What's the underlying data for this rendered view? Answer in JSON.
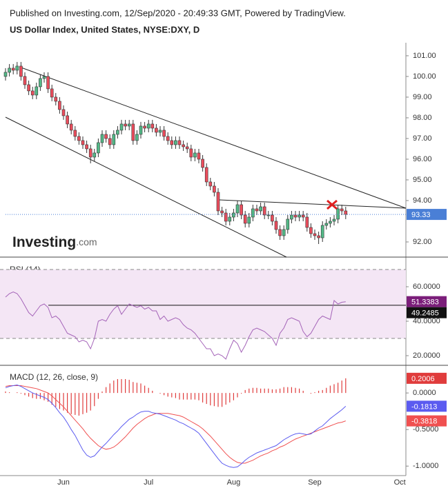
{
  "header": {
    "published": "Published on Investing.com, 12/Sep/2020 - 20:49:33 GMT, Powered by TradingView.",
    "logo": "Investing",
    "logo_suffix": ".com"
  },
  "chart_data": [
    {
      "type": "candlestick",
      "title": "US Dollar Index, United States, NYSE:DXY, D",
      "categories": [
        null,
        null,
        null,
        null,
        null,
        null,
        null,
        null,
        null,
        null,
        null,
        null,
        null,
        null,
        null,
        "Jun",
        null,
        null,
        null,
        null,
        null,
        null,
        null,
        null,
        null,
        null,
        null,
        null,
        null,
        null,
        null,
        null,
        null,
        null,
        null,
        null,
        null,
        "Jul",
        null,
        null,
        null,
        null,
        null,
        null,
        null,
        null,
        null,
        null,
        null,
        null,
        null,
        null,
        null,
        null,
        null,
        null,
        null,
        null,
        null,
        "Aug",
        null,
        null,
        null,
        null,
        null,
        null,
        null,
        null,
        null,
        null,
        null,
        null,
        null,
        null,
        null,
        null,
        null,
        null,
        null,
        null,
        "Sep",
        null,
        null,
        null,
        null,
        null,
        null,
        null,
        null,
        null,
        null,
        null,
        null,
        null,
        null,
        null,
        null,
        null,
        null,
        null,
        null,
        null,
        "Oct"
      ],
      "open": [
        100.0,
        100.2,
        100.4,
        100.3,
        100.5,
        100.0,
        99.6,
        99.3,
        99.1,
        99.5,
        99.9,
        100.0,
        99.4,
        99.0,
        98.8,
        98.4,
        98.1,
        97.7,
        97.4,
        97.1,
        96.9,
        96.7,
        96.5,
        96.1,
        96.3,
        96.8,
        97.2,
        97.0,
        96.7,
        97.2,
        97.4,
        97.7,
        97.6,
        97.7,
        96.9,
        97.2,
        97.6,
        97.5,
        97.7,
        97.5,
        97.3,
        97.4,
        97.1,
        96.9,
        96.7,
        96.9,
        96.7,
        96.6,
        96.5,
        96.1,
        96.3,
        96.0,
        95.6,
        94.9,
        94.7,
        94.4,
        93.5,
        93.4,
        93.0,
        93.2,
        93.4,
        93.8,
        93.3,
        92.9,
        93.2,
        93.6,
        93.5,
        93.7,
        93.3,
        93.3,
        93.0,
        92.6,
        92.3,
        92.6,
        93.1,
        93.3,
        93.2,
        93.3,
        93.2,
        92.7,
        92.4,
        92.3,
        92.2,
        92.8,
        92.9,
        93.0,
        93.1,
        93.6,
        93.5,
        null,
        null,
        null,
        null,
        null,
        null,
        null,
        null,
        null,
        null,
        null,
        null,
        null,
        null
      ],
      "high": [
        100.4,
        100.6,
        100.6,
        100.7,
        100.7,
        100.2,
        99.8,
        99.5,
        99.7,
        100.1,
        100.2,
        100.2,
        99.6,
        99.2,
        99.0,
        98.6,
        98.3,
        97.9,
        97.6,
        97.3,
        97.1,
        96.9,
        96.7,
        96.5,
        97.0,
        97.4,
        97.4,
        97.2,
        97.4,
        97.6,
        97.9,
        97.9,
        97.9,
        97.9,
        97.4,
        97.8,
        97.8,
        97.9,
        97.9,
        97.7,
        97.6,
        97.6,
        97.3,
        97.1,
        97.1,
        97.1,
        96.9,
        96.8,
        96.7,
        96.5,
        96.5,
        96.2,
        95.8,
        95.1,
        94.9,
        94.6,
        93.7,
        93.6,
        93.4,
        93.6,
        94.0,
        94.0,
        93.5,
        93.4,
        93.8,
        93.8,
        93.9,
        93.9,
        93.5,
        93.5,
        93.2,
        92.8,
        92.8,
        93.3,
        93.5,
        93.5,
        93.5,
        93.5,
        93.4,
        92.9,
        92.6,
        92.5,
        93.0,
        93.1,
        93.2,
        93.3,
        93.8,
        93.8,
        93.7,
        null,
        null,
        null,
        null,
        null,
        null,
        null,
        null,
        null,
        null,
        null,
        null,
        null,
        null
      ],
      "low": [
        99.8,
        100.0,
        100.1,
        100.1,
        99.8,
        99.4,
        99.1,
        98.9,
        98.9,
        99.3,
        99.7,
        99.2,
        98.8,
        98.6,
        98.2,
        97.9,
        97.5,
        97.2,
        96.9,
        96.7,
        96.5,
        96.3,
        95.8,
        95.9,
        96.1,
        96.6,
        96.8,
        96.5,
        96.5,
        97.0,
        97.2,
        97.4,
        97.4,
        96.7,
        96.7,
        97.0,
        97.3,
        97.3,
        97.3,
        97.1,
        97.1,
        96.9,
        96.7,
        96.5,
        96.5,
        96.5,
        96.4,
        96.3,
        95.9,
        95.9,
        95.8,
        95.4,
        94.7,
        94.5,
        94.2,
        93.3,
        93.2,
        92.8,
        92.8,
        93.0,
        93.2,
        93.1,
        92.7,
        92.7,
        93.0,
        93.3,
        93.3,
        93.1,
        93.1,
        92.8,
        92.4,
        92.1,
        92.1,
        92.4,
        92.9,
        93.0,
        93.0,
        93.0,
        92.5,
        92.2,
        92.1,
        91.9,
        92.0,
        92.6,
        92.7,
        92.8,
        92.9,
        93.3,
        93.1,
        null,
        null,
        null,
        null,
        null,
        null,
        null,
        null,
        null,
        null,
        null,
        null,
        null,
        null
      ],
      "close": [
        100.2,
        100.4,
        100.3,
        100.5,
        100.0,
        99.6,
        99.3,
        99.1,
        99.5,
        99.9,
        100.0,
        99.4,
        99.0,
        98.8,
        98.4,
        98.1,
        97.7,
        97.4,
        97.1,
        96.9,
        96.7,
        96.5,
        96.1,
        96.3,
        96.8,
        97.2,
        97.0,
        96.7,
        97.2,
        97.4,
        97.7,
        97.6,
        97.7,
        96.9,
        97.2,
        97.6,
        97.5,
        97.7,
        97.5,
        97.3,
        97.4,
        97.1,
        96.9,
        96.7,
        96.9,
        96.7,
        96.6,
        96.5,
        96.1,
        96.3,
        96.0,
        95.6,
        94.9,
        94.7,
        94.4,
        93.5,
        93.4,
        93.0,
        93.2,
        93.4,
        93.8,
        93.3,
        92.9,
        93.2,
        93.6,
        93.5,
        93.7,
        93.3,
        93.3,
        93.0,
        92.6,
        92.3,
        92.6,
        93.1,
        93.3,
        93.2,
        93.3,
        93.2,
        92.7,
        92.4,
        92.3,
        92.2,
        92.8,
        92.9,
        93.0,
        93.1,
        93.6,
        93.5,
        93.33,
        null,
        null,
        null,
        null,
        null,
        null,
        null,
        null,
        null,
        null,
        null,
        null,
        null,
        null
      ],
      "colors": {
        "up": "#53b987",
        "down": "#eb4d5c",
        "last": "#4a7fd6"
      },
      "ylim": [
        91.3,
        101.63
      ],
      "yticks": [
        {
          "value": 101,
          "label": "101.00"
        },
        {
          "value": 100,
          "label": "100.00"
        },
        {
          "value": 99,
          "label": "99.00"
        },
        {
          "value": 98,
          "label": "98.00"
        },
        {
          "value": 97,
          "label": "97.00"
        },
        {
          "value": 96,
          "label": "96.00"
        },
        {
          "value": 95,
          "label": "95.00"
        },
        {
          "value": 94,
          "label": "94.00"
        },
        {
          "value": 92,
          "label": "92.00"
        }
      ]
    },
    {
      "type": "line",
      "title": "RSI (14)",
      "color": "#a463b8",
      "values": [
        54,
        56,
        57,
        56,
        53,
        49,
        45,
        43,
        46,
        49,
        50,
        48,
        42,
        43,
        41,
        37,
        33,
        32,
        31,
        28,
        29,
        28,
        24,
        30,
        40,
        41,
        40,
        44,
        47,
        49,
        44,
        47,
        50,
        49,
        48,
        49,
        47,
        48,
        46,
        46,
        41,
        43,
        40,
        41,
        42,
        41,
        38,
        36,
        35,
        33,
        30,
        27,
        24,
        24,
        20,
        21,
        20,
        18,
        24,
        29,
        27,
        22,
        26,
        31,
        35,
        36,
        35,
        34,
        32,
        30,
        26,
        33,
        36,
        41,
        42,
        41,
        40,
        34,
        31,
        33,
        37,
        41,
        43,
        42,
        41,
        52,
        50,
        51,
        51.3383,
        null,
        null,
        null,
        null,
        null,
        null,
        null,
        null,
        null,
        null,
        null,
        null,
        null,
        null
      ],
      "label_color": "#7b1e7a",
      "hline": 49.2485,
      "band": [
        30,
        70
      ],
      "band_color": "#f4e6f5",
      "ylim": [
        15.2,
        75.2
      ],
      "yticks": [
        {
          "value": 60,
          "label": "60.0000"
        },
        {
          "value": 40,
          "label": "40.0000"
        },
        {
          "value": 20,
          "label": "20.0000"
        }
      ]
    },
    {
      "type": "macd",
      "title": "MACD (12, 26, close, 9)",
      "macd": {
        "color": "#5b5bf0",
        "values": [
          0.07,
          0.09,
          0.1,
          0.11,
          0.09,
          0.06,
          0.03,
          0.0,
          -0.02,
          -0.04,
          -0.06,
          -0.09,
          -0.14,
          -0.2,
          -0.27,
          -0.33,
          -0.41,
          -0.5,
          -0.58,
          -0.68,
          -0.78,
          -0.85,
          -0.88,
          -0.86,
          -0.8,
          -0.74,
          -0.69,
          -0.63,
          -0.57,
          -0.52,
          -0.46,
          -0.41,
          -0.36,
          -0.33,
          -0.29,
          -0.26,
          -0.25,
          -0.25,
          -0.27,
          -0.28,
          -0.29,
          -0.31,
          -0.33,
          -0.35,
          -0.37,
          -0.4,
          -0.42,
          -0.45,
          -0.48,
          -0.51,
          -0.55,
          -0.62,
          -0.69,
          -0.76,
          -0.83,
          -0.9,
          -0.96,
          -0.99,
          -1.01,
          -1.02,
          -1.01,
          -0.97,
          -0.92,
          -0.88,
          -0.85,
          -0.82,
          -0.8,
          -0.78,
          -0.76,
          -0.74,
          -0.72,
          -0.68,
          -0.64,
          -0.61,
          -0.58,
          -0.56,
          -0.55,
          -0.56,
          -0.57,
          -0.56,
          -0.52,
          -0.48,
          -0.45,
          -0.4,
          -0.35,
          -0.31,
          -0.27,
          -0.23,
          -0.1813,
          null,
          null,
          null,
          null,
          null,
          null,
          null,
          null,
          null,
          null,
          null,
          null,
          null,
          null
        ]
      },
      "signal": {
        "color": "#f05050",
        "values": [
          0.09,
          0.1,
          0.1,
          0.1,
          0.1,
          0.09,
          0.08,
          0.07,
          0.06,
          0.04,
          0.02,
          0.0,
          -0.04,
          -0.09,
          -0.14,
          -0.19,
          -0.25,
          -0.31,
          -0.37,
          -0.43,
          -0.49,
          -0.56,
          -0.62,
          -0.67,
          -0.72,
          -0.75,
          -0.77,
          -0.76,
          -0.74,
          -0.7,
          -0.65,
          -0.6,
          -0.54,
          -0.48,
          -0.43,
          -0.39,
          -0.35,
          -0.32,
          -0.3,
          -0.28,
          -0.28,
          -0.28,
          -0.28,
          -0.29,
          -0.3,
          -0.31,
          -0.33,
          -0.36,
          -0.39,
          -0.42,
          -0.45,
          -0.49,
          -0.54,
          -0.59,
          -0.65,
          -0.71,
          -0.77,
          -0.83,
          -0.88,
          -0.92,
          -0.95,
          -0.96,
          -0.96,
          -0.94,
          -0.92,
          -0.89,
          -0.86,
          -0.84,
          -0.82,
          -0.79,
          -0.77,
          -0.74,
          -0.72,
          -0.69,
          -0.66,
          -0.63,
          -0.61,
          -0.59,
          -0.57,
          -0.55,
          -0.53,
          -0.51,
          -0.49,
          -0.47,
          -0.45,
          -0.43,
          -0.41,
          -0.4,
          -0.3818,
          null,
          null,
          null,
          null,
          null,
          null,
          null,
          null,
          null,
          null,
          null,
          null,
          null,
          null
        ]
      },
      "histogram": {
        "color": "#e03c3c",
        "values": [
          0.02,
          0.01,
          0.0,
          0.01,
          -0.01,
          -0.03,
          -0.05,
          -0.07,
          -0.08,
          -0.08,
          -0.1,
          -0.12,
          -0.16,
          -0.19,
          -0.22,
          -0.24,
          -0.27,
          -0.29,
          -0.3,
          -0.31,
          -0.29,
          -0.27,
          -0.24,
          -0.18,
          -0.08,
          0.02,
          0.08,
          0.13,
          0.17,
          0.19,
          0.19,
          0.19,
          0.18,
          0.15,
          0.14,
          0.13,
          0.1,
          0.07,
          0.03,
          0.0,
          -0.01,
          -0.03,
          -0.05,
          -0.06,
          -0.07,
          -0.09,
          -0.09,
          -0.09,
          -0.09,
          -0.09,
          -0.1,
          -0.13,
          -0.15,
          -0.17,
          -0.18,
          -0.19,
          -0.19,
          -0.16,
          -0.13,
          -0.1,
          -0.06,
          -0.01,
          0.04,
          0.06,
          0.07,
          0.07,
          0.06,
          0.06,
          0.06,
          0.05,
          0.05,
          0.06,
          0.08,
          0.08,
          0.08,
          0.07,
          0.06,
          0.03,
          0.0,
          -0.01,
          0.01,
          0.03,
          0.04,
          0.07,
          0.1,
          0.12,
          0.14,
          0.17,
          0.2006,
          null,
          null,
          null,
          null,
          null,
          null,
          null,
          null,
          null,
          null,
          null,
          null,
          null,
          null
        ]
      },
      "ylim": [
        -1.13,
        0.35
      ],
      "yticks": [
        {
          "value": 0,
          "label": "0.0000"
        },
        {
          "value": -0.5,
          "label": "-0.5000"
        },
        {
          "value": -1,
          "label": "-1.0000"
        }
      ]
    }
  ]
}
